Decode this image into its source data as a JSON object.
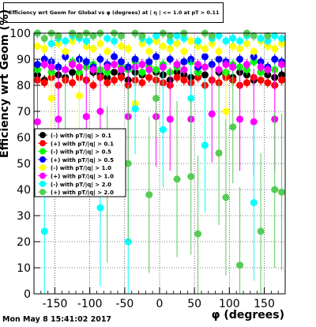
{
  "title": "Efficiency wrt Geom for Global vs φ (degrees) at | η | <= 1.0 at pT > 0.11",
  "footer": "Mon May  8 15:41:02 2017",
  "chart_data": {
    "type": "scatter",
    "xlabel": "φ (degrees)",
    "ylabel": "Efficiency wrt Geom (%)",
    "xlim": [
      -180,
      180
    ],
    "ylim": [
      0,
      100
    ],
    "xticks": [
      -150,
      -100,
      -50,
      0,
      50,
      100,
      150
    ],
    "yticks": [
      0,
      10,
      20,
      30,
      40,
      50,
      60,
      70,
      80,
      90,
      100
    ],
    "grid": true,
    "legend_position": "left-middle",
    "series": [
      {
        "name": "(-) with pT/|q| > 0.1",
        "color": "#000000",
        "marker": "circle",
        "x": [
          -175,
          -165,
          -155,
          -145,
          -135,
          -125,
          -115,
          -105,
          -95,
          -85,
          -75,
          -65,
          -55,
          -45,
          -35,
          -25,
          -15,
          -5,
          5,
          15,
          25,
          35,
          45,
          55,
          65,
          75,
          85,
          95,
          105,
          115,
          125,
          135,
          145,
          155,
          165,
          175
        ],
        "y": [
          84,
          82,
          85,
          84,
          83,
          85,
          84,
          82,
          85,
          84,
          83,
          85,
          84,
          82,
          85,
          84,
          83,
          85,
          84,
          82,
          85,
          84,
          83,
          85,
          84,
          82,
          85,
          84,
          83,
          85,
          84,
          82,
          85,
          84,
          83,
          84
        ]
      },
      {
        "name": "(+) with pT/|q| > 0.1",
        "color": "#ff0000",
        "marker": "circle",
        "x": [
          -175,
          -165,
          -155,
          -145,
          -135,
          -125,
          -115,
          -105,
          -95,
          -85,
          -75,
          -65,
          -55,
          -45,
          -35,
          -25,
          -15,
          -5,
          5,
          15,
          25,
          35,
          45,
          55,
          65,
          75,
          85,
          95,
          105,
          115,
          125,
          135,
          145,
          155,
          165,
          175
        ],
        "y": [
          82,
          81,
          83,
          80,
          82,
          81,
          83,
          82,
          80,
          83,
          81,
          82,
          83,
          80,
          82,
          81,
          83,
          82,
          81,
          80,
          83,
          82,
          81,
          83,
          80,
          82,
          81,
          83,
          82,
          80,
          81,
          83,
          82,
          81,
          80,
          82
        ]
      },
      {
        "name": "(-) with pT/|q| > 0.5",
        "color": "#00ff00",
        "marker": "circle",
        "x": [
          -175,
          -165,
          -155,
          -145,
          -135,
          -125,
          -115,
          -105,
          -95,
          -85,
          -75,
          -65,
          -55,
          -45,
          -35,
          -25,
          -15,
          -5,
          5,
          15,
          25,
          35,
          45,
          55,
          65,
          75,
          85,
          95,
          105,
          115,
          125,
          135,
          145,
          155,
          165,
          175
        ],
        "y": [
          86,
          88,
          85,
          87,
          86,
          89,
          85,
          87,
          88,
          86,
          85,
          88,
          87,
          86,
          89,
          85,
          87,
          86,
          88,
          85,
          87,
          86,
          89,
          85,
          87,
          88,
          86,
          85,
          88,
          87,
          86,
          89,
          85,
          87,
          86,
          88
        ]
      },
      {
        "name": "(+) with pT/|q| > 0.5",
        "color": "#0000ff",
        "marker": "circle",
        "x": [
          -175,
          -165,
          -155,
          -145,
          -135,
          -125,
          -115,
          -105,
          -95,
          -85,
          -75,
          -65,
          -55,
          -45,
          -35,
          -25,
          -15,
          -5,
          5,
          15,
          25,
          35,
          45,
          55,
          65,
          75,
          85,
          95,
          105,
          115,
          125,
          135,
          145,
          155,
          165,
          175
        ],
        "y": [
          88,
          90,
          89,
          87,
          91,
          88,
          90,
          89,
          87,
          90,
          88,
          91,
          89,
          87,
          90,
          88,
          89,
          91,
          87,
          90,
          88,
          89,
          90,
          87,
          91,
          88,
          90,
          89,
          87,
          90,
          88,
          91,
          89,
          87,
          90,
          89
        ]
      },
      {
        "name": "(-) with pT/|q| > 1.0",
        "color": "#ffff00",
        "marker": "circle",
        "x": [
          -175,
          -165,
          -155,
          -145,
          -135,
          -125,
          -115,
          -105,
          -95,
          -85,
          -75,
          -65,
          -55,
          -45,
          -35,
          -25,
          -15,
          -5,
          5,
          15,
          25,
          35,
          45,
          55,
          65,
          75,
          85,
          95,
          105,
          115,
          125,
          135,
          145,
          155,
          165,
          175
        ],
        "y": [
          95,
          94,
          75,
          96,
          93,
          97,
          76,
          95,
          94,
          96,
          93,
          97,
          95,
          94,
          73,
          96,
          93,
          97,
          95,
          94,
          96,
          93,
          97,
          95,
          94,
          96,
          93,
          70,
          95,
          94,
          96,
          93,
          97,
          95,
          94,
          96
        ]
      },
      {
        "name": "(+) with pT/|q| > 1.0",
        "color": "#ff00ff",
        "marker": "circle",
        "x": [
          -175,
          -165,
          -155,
          -145,
          -135,
          -125,
          -115,
          -105,
          -95,
          -85,
          -75,
          -65,
          -55,
          -45,
          -35,
          -25,
          -15,
          -5,
          5,
          15,
          25,
          35,
          45,
          55,
          65,
          75,
          85,
          95,
          105,
          115,
          125,
          135,
          145,
          155,
          165,
          175
        ],
        "y": [
          66,
          88,
          87,
          67,
          86,
          88,
          87,
          68,
          86,
          70,
          87,
          88,
          86,
          68,
          87,
          88,
          86,
          68,
          87,
          67,
          88,
          86,
          67,
          88,
          87,
          69,
          86,
          88,
          87,
          67,
          88,
          66,
          87,
          86,
          67,
          88
        ]
      },
      {
        "name": "(-) with pT/|q| > 2.0",
        "color": "#00ffff",
        "marker": "circle",
        "x": [
          -175,
          -165,
          -155,
          -145,
          -135,
          -125,
          -115,
          -105,
          -95,
          -85,
          -75,
          -65,
          -55,
          -45,
          -35,
          -25,
          -15,
          -5,
          5,
          15,
          25,
          35,
          45,
          55,
          65,
          75,
          85,
          95,
          105,
          115,
          125,
          135,
          145,
          155,
          165,
          175
        ],
        "y": [
          100,
          24,
          96,
          98,
          97,
          99,
          98,
          97,
          99,
          33,
          98,
          97,
          99,
          20,
          71,
          98,
          97,
          99,
          63,
          97,
          99,
          98,
          75,
          97,
          57,
          98,
          99,
          97,
          98,
          97,
          99,
          35,
          98,
          97,
          99,
          98
        ]
      },
      {
        "name": "(+) with pT/|q| > 2.0",
        "color": "#55cc55",
        "marker": "circle",
        "x": [
          -175,
          -165,
          -155,
          -145,
          -135,
          -125,
          -115,
          -105,
          -95,
          -85,
          -75,
          -65,
          -55,
          -45,
          -35,
          -25,
          -15,
          -5,
          5,
          15,
          25,
          35,
          45,
          55,
          65,
          75,
          85,
          95,
          105,
          115,
          125,
          135,
          145,
          155,
          165,
          175
        ],
        "y": [
          100,
          98,
          100,
          99,
          62,
          100,
          99,
          100,
          99,
          100,
          42,
          100,
          99,
          50,
          100,
          99,
          38,
          75,
          100,
          99,
          44,
          100,
          45,
          23,
          100,
          99,
          54,
          37,
          64,
          11,
          100,
          99,
          24,
          99,
          40,
          39
        ]
      }
    ]
  }
}
